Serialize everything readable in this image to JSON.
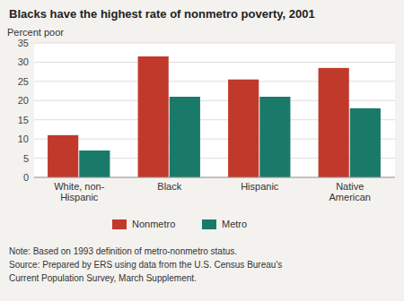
{
  "chart_data": {
    "type": "bar",
    "title": "Blacks have the highest rate of nonmetro poverty, 2001",
    "y_label": "Percent poor",
    "categories": [
      "White, non-\nHispanic",
      "Black",
      "Hispanic",
      "Native\nAmerican"
    ],
    "series": [
      {
        "name": "Nonmetro",
        "color": "#C1392B",
        "values": [
          11.0,
          31.5,
          25.5,
          28.5
        ]
      },
      {
        "name": "Metro",
        "color": "#1A7A6A",
        "values": [
          7.0,
          21.0,
          21.0,
          18.0
        ]
      }
    ],
    "ylim": [
      0,
      35
    ],
    "yticks": [
      0,
      5,
      10,
      15,
      20,
      25,
      30,
      35
    ],
    "grid": true,
    "legend": "bottom",
    "annotations": [
      "Note: Based on 1993 definition of metro-nonmetro status.",
      "Source:  Prepared by ERS using data from the U.S. Census Bureau's",
      "Current Population Survey, March Supplement."
    ]
  }
}
